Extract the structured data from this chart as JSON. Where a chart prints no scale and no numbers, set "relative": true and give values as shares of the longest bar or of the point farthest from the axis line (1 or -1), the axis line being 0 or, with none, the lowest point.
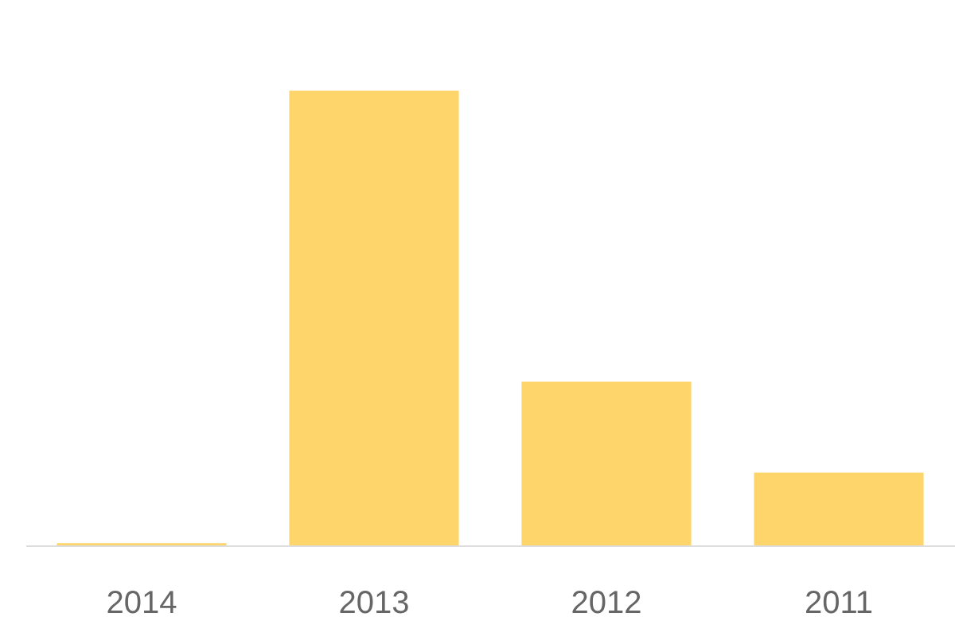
{
  "chart_data": {
    "type": "bar",
    "categories": [
      "2014",
      "2013",
      "2012",
      "2011"
    ],
    "values": [
      0.005,
      1,
      0.36,
      0.16
    ],
    "color": "#fed56b",
    "relative": true
  }
}
